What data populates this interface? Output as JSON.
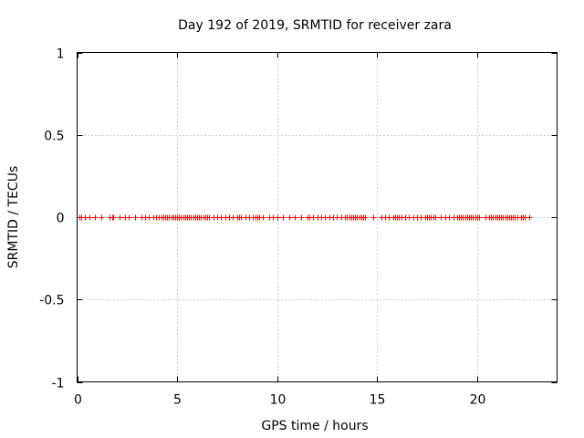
{
  "chart_data": {
    "type": "scatter",
    "title": "Day 192 of 2019, SRMTID for receiver zara",
    "xlabel": "GPS time / hours",
    "ylabel": "SRMTID / TECUs",
    "xlim": [
      0,
      24
    ],
    "ylim": [
      -1,
      1
    ],
    "xticks": [
      0,
      5,
      10,
      15,
      20
    ],
    "xtick_labels": [
      "0",
      "5",
      "10",
      "15",
      "20"
    ],
    "yticks": [
      -1,
      -0.5,
      0,
      0.5,
      1
    ],
    "ytick_labels": [
      "-1",
      "-0.5",
      "0",
      "0.5",
      "1"
    ],
    "grid": true,
    "marker": "+",
    "series": [
      {
        "name": "SRMTID",
        "color": "#ff0000",
        "x": [
          0.1,
          0.2,
          0.4,
          0.6,
          0.9,
          1.2,
          1.6,
          1.75,
          1.8,
          2.1,
          2.4,
          2.6,
          2.9,
          3.2,
          3.4,
          3.6,
          3.8,
          3.95,
          4.1,
          4.2,
          4.3,
          4.4,
          4.5,
          4.6,
          4.7,
          4.8,
          4.9,
          5.0,
          5.1,
          5.2,
          5.3,
          5.4,
          5.5,
          5.6,
          5.7,
          5.8,
          5.9,
          6.0,
          6.1,
          6.2,
          6.3,
          6.4,
          6.5,
          6.6,
          6.8,
          7.0,
          7.2,
          7.4,
          7.6,
          7.8,
          8.0,
          8.1,
          8.2,
          8.4,
          8.6,
          8.8,
          8.9,
          9.0,
          9.1,
          9.3,
          9.6,
          9.8,
          10.0,
          10.3,
          10.6,
          10.9,
          11.2,
          11.5,
          11.6,
          11.8,
          12.0,
          12.2,
          12.4,
          12.6,
          12.8,
          13.0,
          13.2,
          13.4,
          13.5,
          13.6,
          13.7,
          13.8,
          13.9,
          14.0,
          14.1,
          14.2,
          14.3,
          14.4,
          14.8,
          15.2,
          15.4,
          15.6,
          15.8,
          15.9,
          16.0,
          16.1,
          16.2,
          16.4,
          16.6,
          16.8,
          17.0,
          17.2,
          17.4,
          17.5,
          17.6,
          17.7,
          17.8,
          17.9,
          18.2,
          18.4,
          18.6,
          18.8,
          19.0,
          19.1,
          19.2,
          19.3,
          19.4,
          19.5,
          19.6,
          19.7,
          19.8,
          19.9,
          20.0,
          20.1,
          20.4,
          20.6,
          20.7,
          20.8,
          20.9,
          21.0,
          21.1,
          21.2,
          21.3,
          21.4,
          21.5,
          21.6,
          21.7,
          21.8,
          21.9,
          22.0,
          22.2,
          22.3,
          22.4,
          22.6
        ],
        "y_constant": 0
      }
    ]
  }
}
